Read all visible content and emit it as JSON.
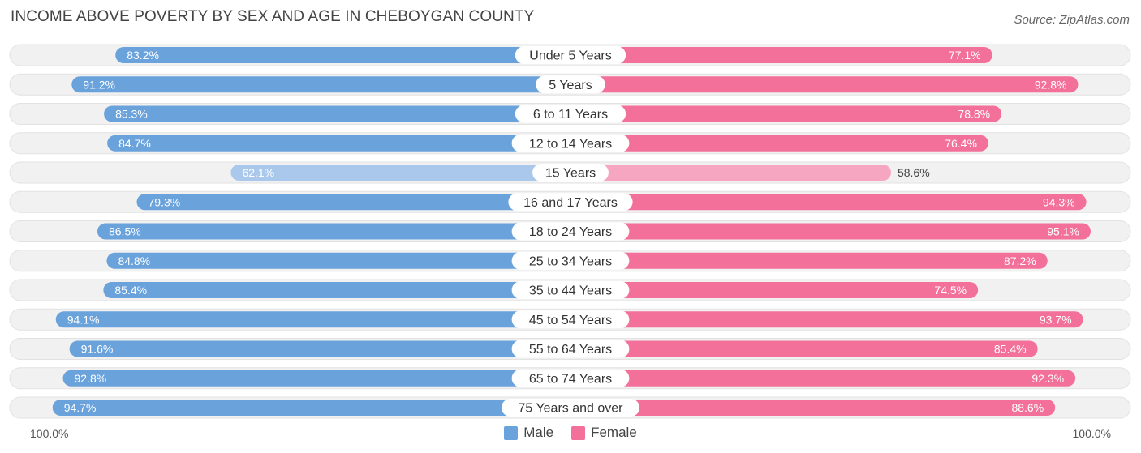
{
  "header": {
    "title": "INCOME ABOVE POVERTY BY SEX AND AGE IN CHEBOYGAN COUNTY",
    "source": "Source: ZipAtlas.com"
  },
  "axis": {
    "left_label": "100.0%",
    "right_label": "100.0%"
  },
  "legend": {
    "male_label": "Male",
    "female_label": "Female"
  },
  "colors": {
    "male_strong": "#6aa2dc",
    "male_light": "#a9c8ec",
    "female_strong": "#f2709a",
    "female_light": "#f7a6c1",
    "track": "#f1f1f1",
    "track_border": "#e2e2e2"
  },
  "chart_data": {
    "type": "bar",
    "orientation": "horizontal-diverging",
    "title": "INCOME ABOVE POVERTY BY SEX AND AGE IN CHEBOYGAN COUNTY",
    "xlim": [
      0,
      100
    ],
    "unit": "%",
    "categories": [
      "Under 5 Years",
      "5 Years",
      "6 to 11 Years",
      "12 to 14 Years",
      "15 Years",
      "16 and 17 Years",
      "18 to 24 Years",
      "25 to 34 Years",
      "35 to 44 Years",
      "45 to 54 Years",
      "55 to 64 Years",
      "65 to 74 Years",
      "75 Years and over"
    ],
    "series": [
      {
        "name": "Male",
        "values": [
          83.2,
          91.2,
          85.3,
          84.7,
          62.1,
          79.3,
          86.5,
          84.8,
          85.4,
          94.1,
          91.6,
          92.8,
          94.7
        ],
        "labels": [
          "83.2%",
          "91.2%",
          "85.3%",
          "84.7%",
          "62.1%",
          "79.3%",
          "86.5%",
          "84.8%",
          "85.4%",
          "94.1%",
          "91.6%",
          "92.8%",
          "94.7%"
        ]
      },
      {
        "name": "Female",
        "values": [
          77.1,
          92.8,
          78.8,
          76.4,
          58.6,
          94.3,
          95.1,
          87.2,
          74.5,
          93.7,
          85.4,
          92.3,
          88.6
        ],
        "labels": [
          "77.1%",
          "92.8%",
          "78.8%",
          "76.4%",
          "58.6%",
          "94.3%",
          "95.1%",
          "87.2%",
          "74.5%",
          "93.7%",
          "85.4%",
          "92.3%",
          "88.6%"
        ]
      }
    ]
  }
}
